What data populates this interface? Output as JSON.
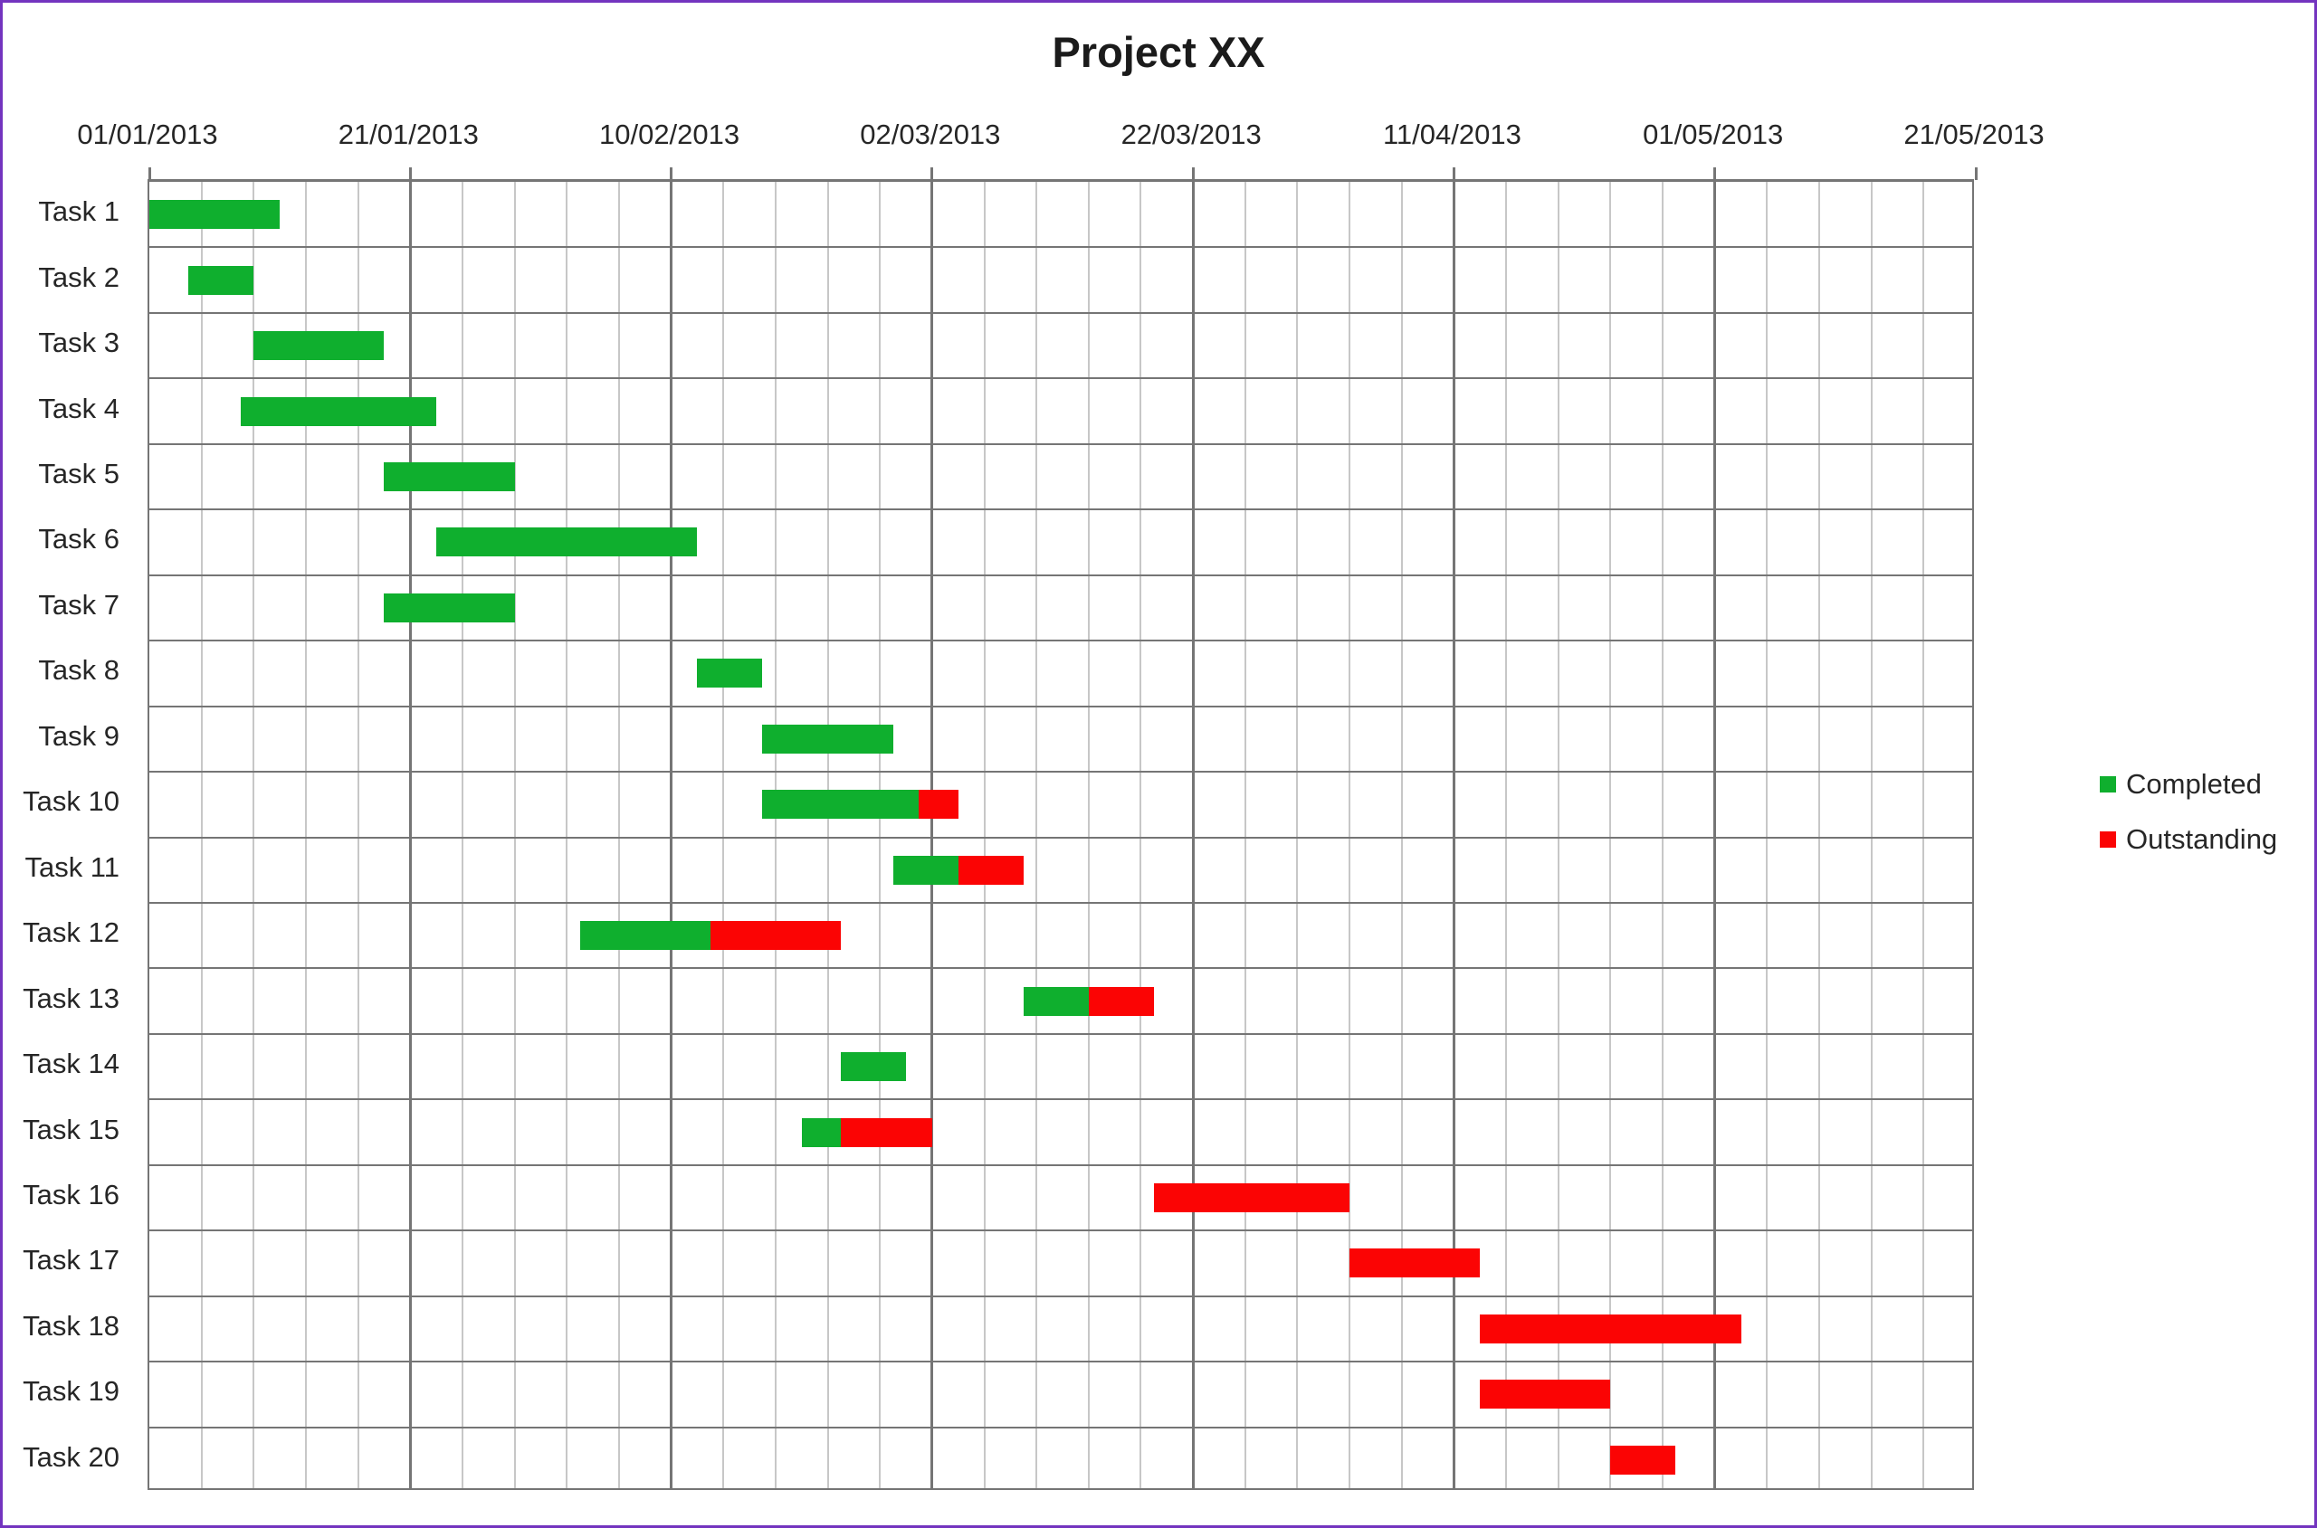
{
  "title": "Project XX",
  "legend": {
    "completed_label": "Completed",
    "outstanding_label": "Outstanding"
  },
  "colors": {
    "completed": "#0faf2e",
    "outstanding": "#fb0404",
    "frame_border": "#7334bf",
    "grid_major": "#757575",
    "grid_minor": "#c7c7c7",
    "text": "#262626"
  },
  "chart_data": {
    "type": "bar",
    "variant": "gantt-stacked-horizontal",
    "title": "Project XX",
    "grid": true,
    "legend_position": "right",
    "x_axis": {
      "tick_labels": [
        "01/01/2013",
        "21/01/2013",
        "10/02/2013",
        "02/03/2013",
        "22/03/2013",
        "11/04/2013",
        "01/05/2013",
        "21/05/2013"
      ],
      "major_unit_days": 20,
      "minor_unit_days": 4,
      "range_days": [
        0,
        140
      ],
      "origin_date": "01/01/2013"
    },
    "categories": [
      "Task 1",
      "Task 2",
      "Task 3",
      "Task 4",
      "Task 5",
      "Task 6",
      "Task 7",
      "Task 8",
      "Task 9",
      "Task 10",
      "Task 11",
      "Task 12",
      "Task 13",
      "Task 14",
      "Task 15",
      "Task 16",
      "Task 17",
      "Task 18",
      "Task 19",
      "Task 20"
    ],
    "series": [
      {
        "name": "Completed",
        "color": "#0faf2e",
        "values": [
          10,
          5,
          10,
          15,
          10,
          20,
          10,
          5,
          10,
          12,
          5,
          10,
          5,
          5,
          3,
          0,
          0,
          0,
          0,
          0
        ]
      },
      {
        "name": "Outstanding",
        "color": "#fb0404",
        "values": [
          0,
          0,
          0,
          0,
          0,
          0,
          0,
          0,
          0,
          3,
          5,
          10,
          5,
          0,
          7,
          15,
          10,
          20,
          10,
          5
        ]
      }
    ],
    "tasks": [
      {
        "label": "Task 1",
        "start_day": 0,
        "completed_days": 10,
        "outstanding_days": 0
      },
      {
        "label": "Task 2",
        "start_day": 3,
        "completed_days": 5,
        "outstanding_days": 0
      },
      {
        "label": "Task 3",
        "start_day": 8,
        "completed_days": 10,
        "outstanding_days": 0
      },
      {
        "label": "Task 4",
        "start_day": 7,
        "completed_days": 15,
        "outstanding_days": 0
      },
      {
        "label": "Task 5",
        "start_day": 18,
        "completed_days": 10,
        "outstanding_days": 0
      },
      {
        "label": "Task 6",
        "start_day": 22,
        "completed_days": 20,
        "outstanding_days": 0
      },
      {
        "label": "Task 7",
        "start_day": 18,
        "completed_days": 10,
        "outstanding_days": 0
      },
      {
        "label": "Task 8",
        "start_day": 42,
        "completed_days": 5,
        "outstanding_days": 0
      },
      {
        "label": "Task 9",
        "start_day": 47,
        "completed_days": 10,
        "outstanding_days": 0
      },
      {
        "label": "Task 10",
        "start_day": 47,
        "completed_days": 12,
        "outstanding_days": 3
      },
      {
        "label": "Task 11",
        "start_day": 57,
        "completed_days": 5,
        "outstanding_days": 5
      },
      {
        "label": "Task 12",
        "start_day": 33,
        "completed_days": 10,
        "outstanding_days": 10
      },
      {
        "label": "Task 13",
        "start_day": 67,
        "completed_days": 5,
        "outstanding_days": 5
      },
      {
        "label": "Task 14",
        "start_day": 53,
        "completed_days": 5,
        "outstanding_days": 0
      },
      {
        "label": "Task 15",
        "start_day": 50,
        "completed_days": 3,
        "outstanding_days": 7
      },
      {
        "label": "Task 16",
        "start_day": 77,
        "completed_days": 0,
        "outstanding_days": 15
      },
      {
        "label": "Task 17",
        "start_day": 92,
        "completed_days": 0,
        "outstanding_days": 10
      },
      {
        "label": "Task 18",
        "start_day": 102,
        "completed_days": 0,
        "outstanding_days": 20
      },
      {
        "label": "Task 19",
        "start_day": 102,
        "completed_days": 0,
        "outstanding_days": 10
      },
      {
        "label": "Task 20",
        "start_day": 112,
        "completed_days": 0,
        "outstanding_days": 5
      }
    ]
  }
}
